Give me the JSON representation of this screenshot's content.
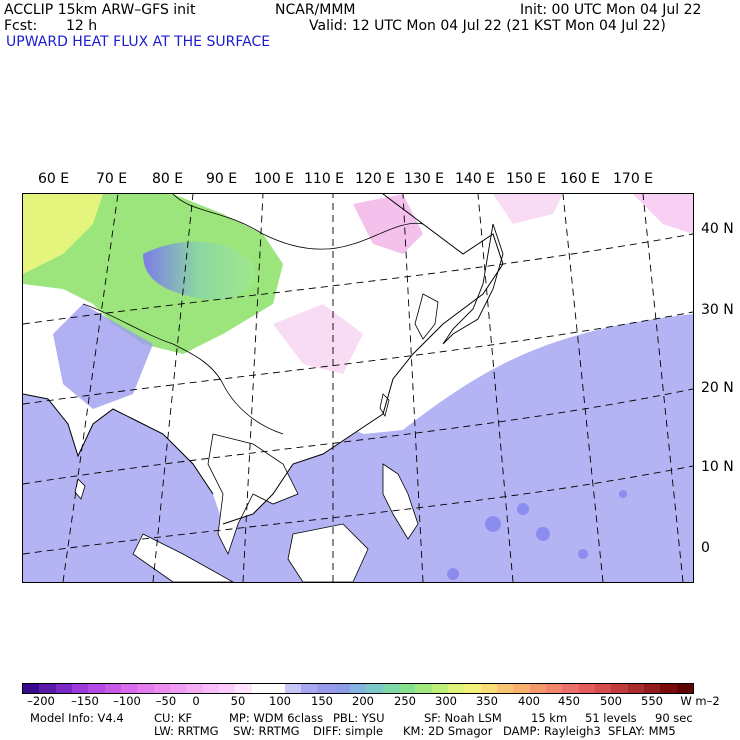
{
  "header": {
    "model": "ACCLIP 15km ARW–GFS init",
    "center": "NCAR/MMM",
    "init": "Init: 00 UTC Mon 04 Jul 22",
    "fcst_label": "Fcst:",
    "fcst_value": "12 h",
    "valid": "Valid: 12 UTC Mon 04 Jul 22 (21 KST Mon 04 Jul 22)",
    "field": "UPWARD HEAT FLUX AT THE SURFACE"
  },
  "map": {
    "lon_labels": [
      "60 E",
      "70 E",
      "80 E",
      "90 E",
      "100 E",
      "110 E",
      "120 E",
      "130 E",
      "140 E",
      "150 E",
      "160 E",
      "170 E"
    ],
    "lat_labels": [
      "40 N",
      "30 N",
      "20 N",
      "10 N",
      "0"
    ],
    "colors": {
      "ocean": "#b4b4f4",
      "land_low": "#ffffff",
      "pink": "#f4c8f0",
      "green": "#8ce06c",
      "yellow": "#e8f47c",
      "blue_land": "#8c8cf0"
    }
  },
  "colorbar": {
    "labels": [
      "–200",
      "–150",
      "–100",
      "–50",
      "0",
      "50",
      "100",
      "150",
      "200",
      "250",
      "300",
      "350",
      "400",
      "450",
      "500",
      "550"
    ],
    "units": "W m–2",
    "colors": [
      "#3a0a8c",
      "#5a1aa8",
      "#7a2ac4",
      "#9a3ad8",
      "#b44ae4",
      "#c85ae8",
      "#d86cec",
      "#e47cf0",
      "#ec8cf0",
      "#f09cf4",
      "#f4acf4",
      "#f8bcf8",
      "#fcccfc",
      "#ffe4ff",
      "#ffffff",
      "#ffffff",
      "#c8c8f8",
      "#a8a8f0",
      "#9898ec",
      "#8c9ce8",
      "#84b4e0",
      "#7cc8c8",
      "#7cd8a8",
      "#84e08c",
      "#a0e87c",
      "#c0f07c",
      "#e0f47c",
      "#f4f07c",
      "#f8dc78",
      "#f8c474",
      "#f8b06c",
      "#f4986c",
      "#f0846c",
      "#ec706c",
      "#e45c5c",
      "#d44c4c",
      "#c03c3c",
      "#a82c2c",
      "#901c1c",
      "#780c0c",
      "#600404"
    ]
  },
  "footer": {
    "line1": [
      "Model Info: V4.4",
      "CU: KF",
      "MP: WDM 6class",
      "PBL: YSU",
      "SF: Noah LSM",
      "15 km",
      "51 levels",
      "90 sec"
    ],
    "line2": [
      "LW: RRTMG",
      "SW: RRTMG",
      "DIFF: simple",
      "KM: 2D Smagor",
      "DAMP: Rayleigh3",
      "SFLAY: MM5"
    ]
  }
}
